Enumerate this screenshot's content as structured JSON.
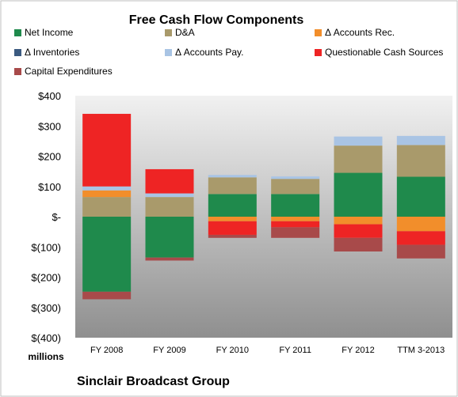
{
  "chart_data": {
    "type": "bar",
    "stacked": true,
    "title": "Free Cash Flow Components",
    "categories": [
      "FY 2008",
      "FY 2009",
      "FY 2010",
      "FY 2011",
      "FY 2012",
      "TTM 3-2013"
    ],
    "y_ticks": [
      "$400",
      "$300",
      "$200",
      "$100",
      "$-",
      "$(100)",
      "$(200)",
      "$(300)",
      "$(400)"
    ],
    "ylim": [
      -400,
      400
    ],
    "unit_label": "millions",
    "footer": "Sinclair Broadcast Group",
    "grid": false,
    "legend_position": "top",
    "series": [
      {
        "name": "Net Income",
        "color": "#1f8a4c",
        "values": [
          -248,
          -135,
          75,
          75,
          145,
          132
        ]
      },
      {
        "name": "D&A",
        "color": "#a99a6b",
        "values": [
          65,
          65,
          55,
          50,
          90,
          105
        ]
      },
      {
        "name": "Δ Accounts Rec.",
        "color": "#f28e2b",
        "values": [
          22,
          0,
          -15,
          -15,
          -25,
          -48
        ]
      },
      {
        "name": "Δ Inventories",
        "color": "#3b5a80",
        "values": [
          0,
          0,
          0,
          0,
          0,
          0
        ]
      },
      {
        "name": "Δ Accounts Pay.",
        "color": "#a9c4e4",
        "values": [
          13,
          12,
          8,
          8,
          30,
          30
        ]
      },
      {
        "name": "Questionable Cash Sources",
        "color": "#ee2424",
        "values": [
          240,
          80,
          -45,
          -20,
          -45,
          -45
        ]
      },
      {
        "name": "Capital Expenditures",
        "color": "#a84a4a",
        "values": [
          -25,
          -10,
          -10,
          -35,
          -45,
          -45
        ]
      }
    ]
  }
}
